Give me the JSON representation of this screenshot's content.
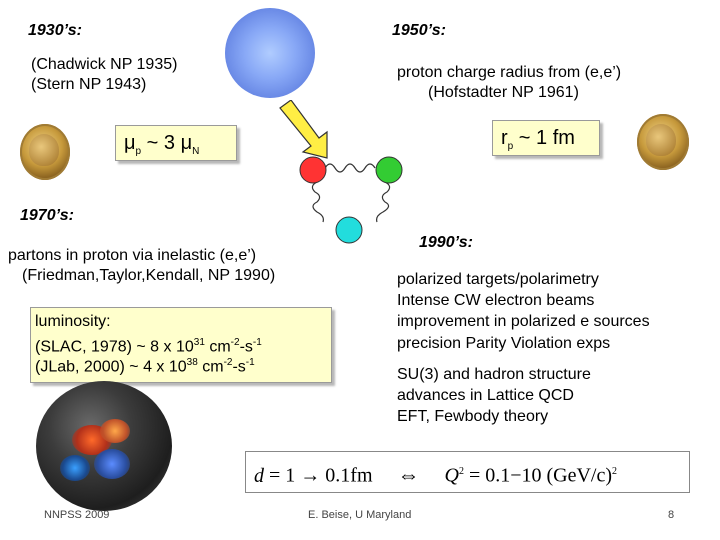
{
  "eras": {
    "e1930": "1930’s:",
    "e1950": "1950’s:",
    "e1970": "1970’s:",
    "e1990": "1990’s:"
  },
  "s1930": {
    "line1": "(Chadwick NP 1935)",
    "line2": "(Stern NP 1943)"
  },
  "s1950": {
    "line1": "proton charge radius from (e,e’)",
    "line2": "(Hofstadter NP 1961)"
  },
  "mu_box": {
    "mu1": "μ",
    "sub1": "p",
    "mid": " ~ 3 ",
    "mu2": "μ",
    "sub2": "N"
  },
  "rp_box": {
    "r": "r",
    "sub": "p",
    "rest": " ~ 1 fm"
  },
  "s1970": {
    "line1": "partons in proton via inelastic (e,e’)",
    "line2": "(Friedman,Taylor,Kendall, NP 1990)"
  },
  "lumi_box": {
    "title": "luminosity:",
    "slac_pre": "(SLAC, 1978) ~ 8 x 10",
    "slac_exp": "31",
    "slac_unit": " cm",
    "slac_exp2": "-2",
    "slac_s": "-s",
    "slac_exp3": "-1",
    "jlab_pre": "(JLab, 2000) ~ 4 x 10",
    "jlab_exp": "38",
    "jlab_unit": " cm",
    "jlab_exp2": "-2",
    "jlab_s": "-s",
    "jlab_exp3": "-1"
  },
  "s1990": {
    "items": [
      "polarized targets/polarimetry",
      "Intense CW electron beams",
      "improvement in polarized e sources",
      "precision Parity Violation exps"
    ],
    "items2": [
      "SU(3) and hadron structure",
      "advances in Lattice QCD",
      "EFT, Fewbody theory"
    ]
  },
  "formula": {
    "d": "d",
    "eq1": " = 1 → 0.1fm",
    "arrow": "⇔",
    "Q": "Q",
    "exp": "2",
    "eq2": " = 0.1−10 (GeV/c)",
    "exp2": "2"
  },
  "footer": {
    "left": "NNPSS 2009",
    "center": "E. Beise, U Maryland",
    "page": "8"
  },
  "colors": {
    "quark_red": "#ff3333",
    "quark_green": "#33cc33",
    "quark_cyan": "#22dddd",
    "arrow_yellow": "#ffee44",
    "box_fill": "#ffffcc"
  }
}
